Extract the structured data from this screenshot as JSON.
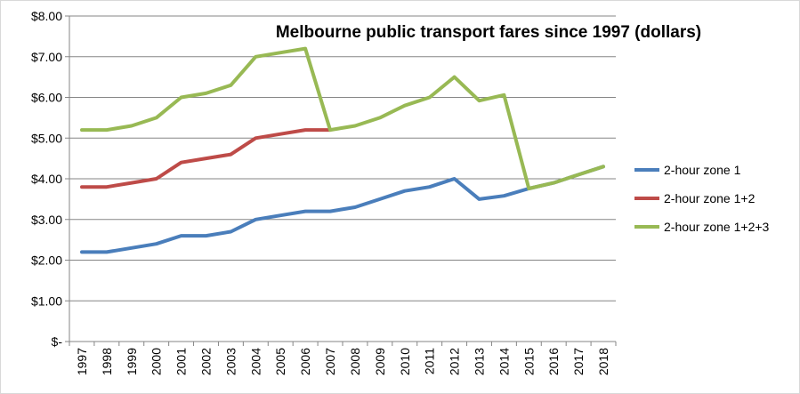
{
  "chart_data": {
    "type": "line",
    "title": "Melbourne public transport fares since 1997 (dollars)",
    "x": [
      "1997",
      "1998",
      "1999",
      "2000",
      "2001",
      "2002",
      "2003",
      "2004",
      "2005",
      "2006",
      "2007",
      "2008",
      "2009",
      "2010",
      "2011",
      "2012",
      "2013",
      "2014",
      "2015",
      "2016",
      "2017",
      "2018"
    ],
    "ylim": [
      0,
      8
    ],
    "yticks": [
      0,
      1,
      2,
      3,
      4,
      5,
      6,
      7,
      8
    ],
    "ytick_labels": [
      "$-",
      "$1.00",
      "$2.00",
      "$3.00",
      "$4.00",
      "$5.00",
      "$6.00",
      "$7.00",
      "$8.00"
    ],
    "grid": "horizontal",
    "legend_position": "right",
    "series": [
      {
        "name": "2-hour zone 1",
        "color": "#4a7ebb",
        "values": [
          2.2,
          2.2,
          2.3,
          2.4,
          2.6,
          2.6,
          2.7,
          3.0,
          3.1,
          3.2,
          3.2,
          3.3,
          3.5,
          3.7,
          3.8,
          4.0,
          3.5,
          3.58,
          3.76,
          3.9,
          4.1,
          4.3
        ]
      },
      {
        "name": "2-hour zone 1+2",
        "color": "#be4b48",
        "values": [
          3.8,
          3.8,
          3.9,
          4.0,
          4.4,
          4.5,
          4.6,
          5.0,
          5.1,
          5.2,
          5.2,
          null,
          null,
          null,
          null,
          null,
          null,
          null,
          null,
          null,
          null,
          null
        ]
      },
      {
        "name": "2-hour zone 1+2+3",
        "color": "#98b954",
        "values": [
          5.2,
          5.2,
          5.3,
          5.5,
          6.0,
          6.1,
          6.3,
          7.0,
          7.1,
          7.2,
          5.2,
          5.3,
          5.5,
          5.8,
          6.0,
          6.5,
          5.92,
          6.06,
          3.76,
          3.9,
          4.1,
          4.3
        ]
      }
    ]
  }
}
